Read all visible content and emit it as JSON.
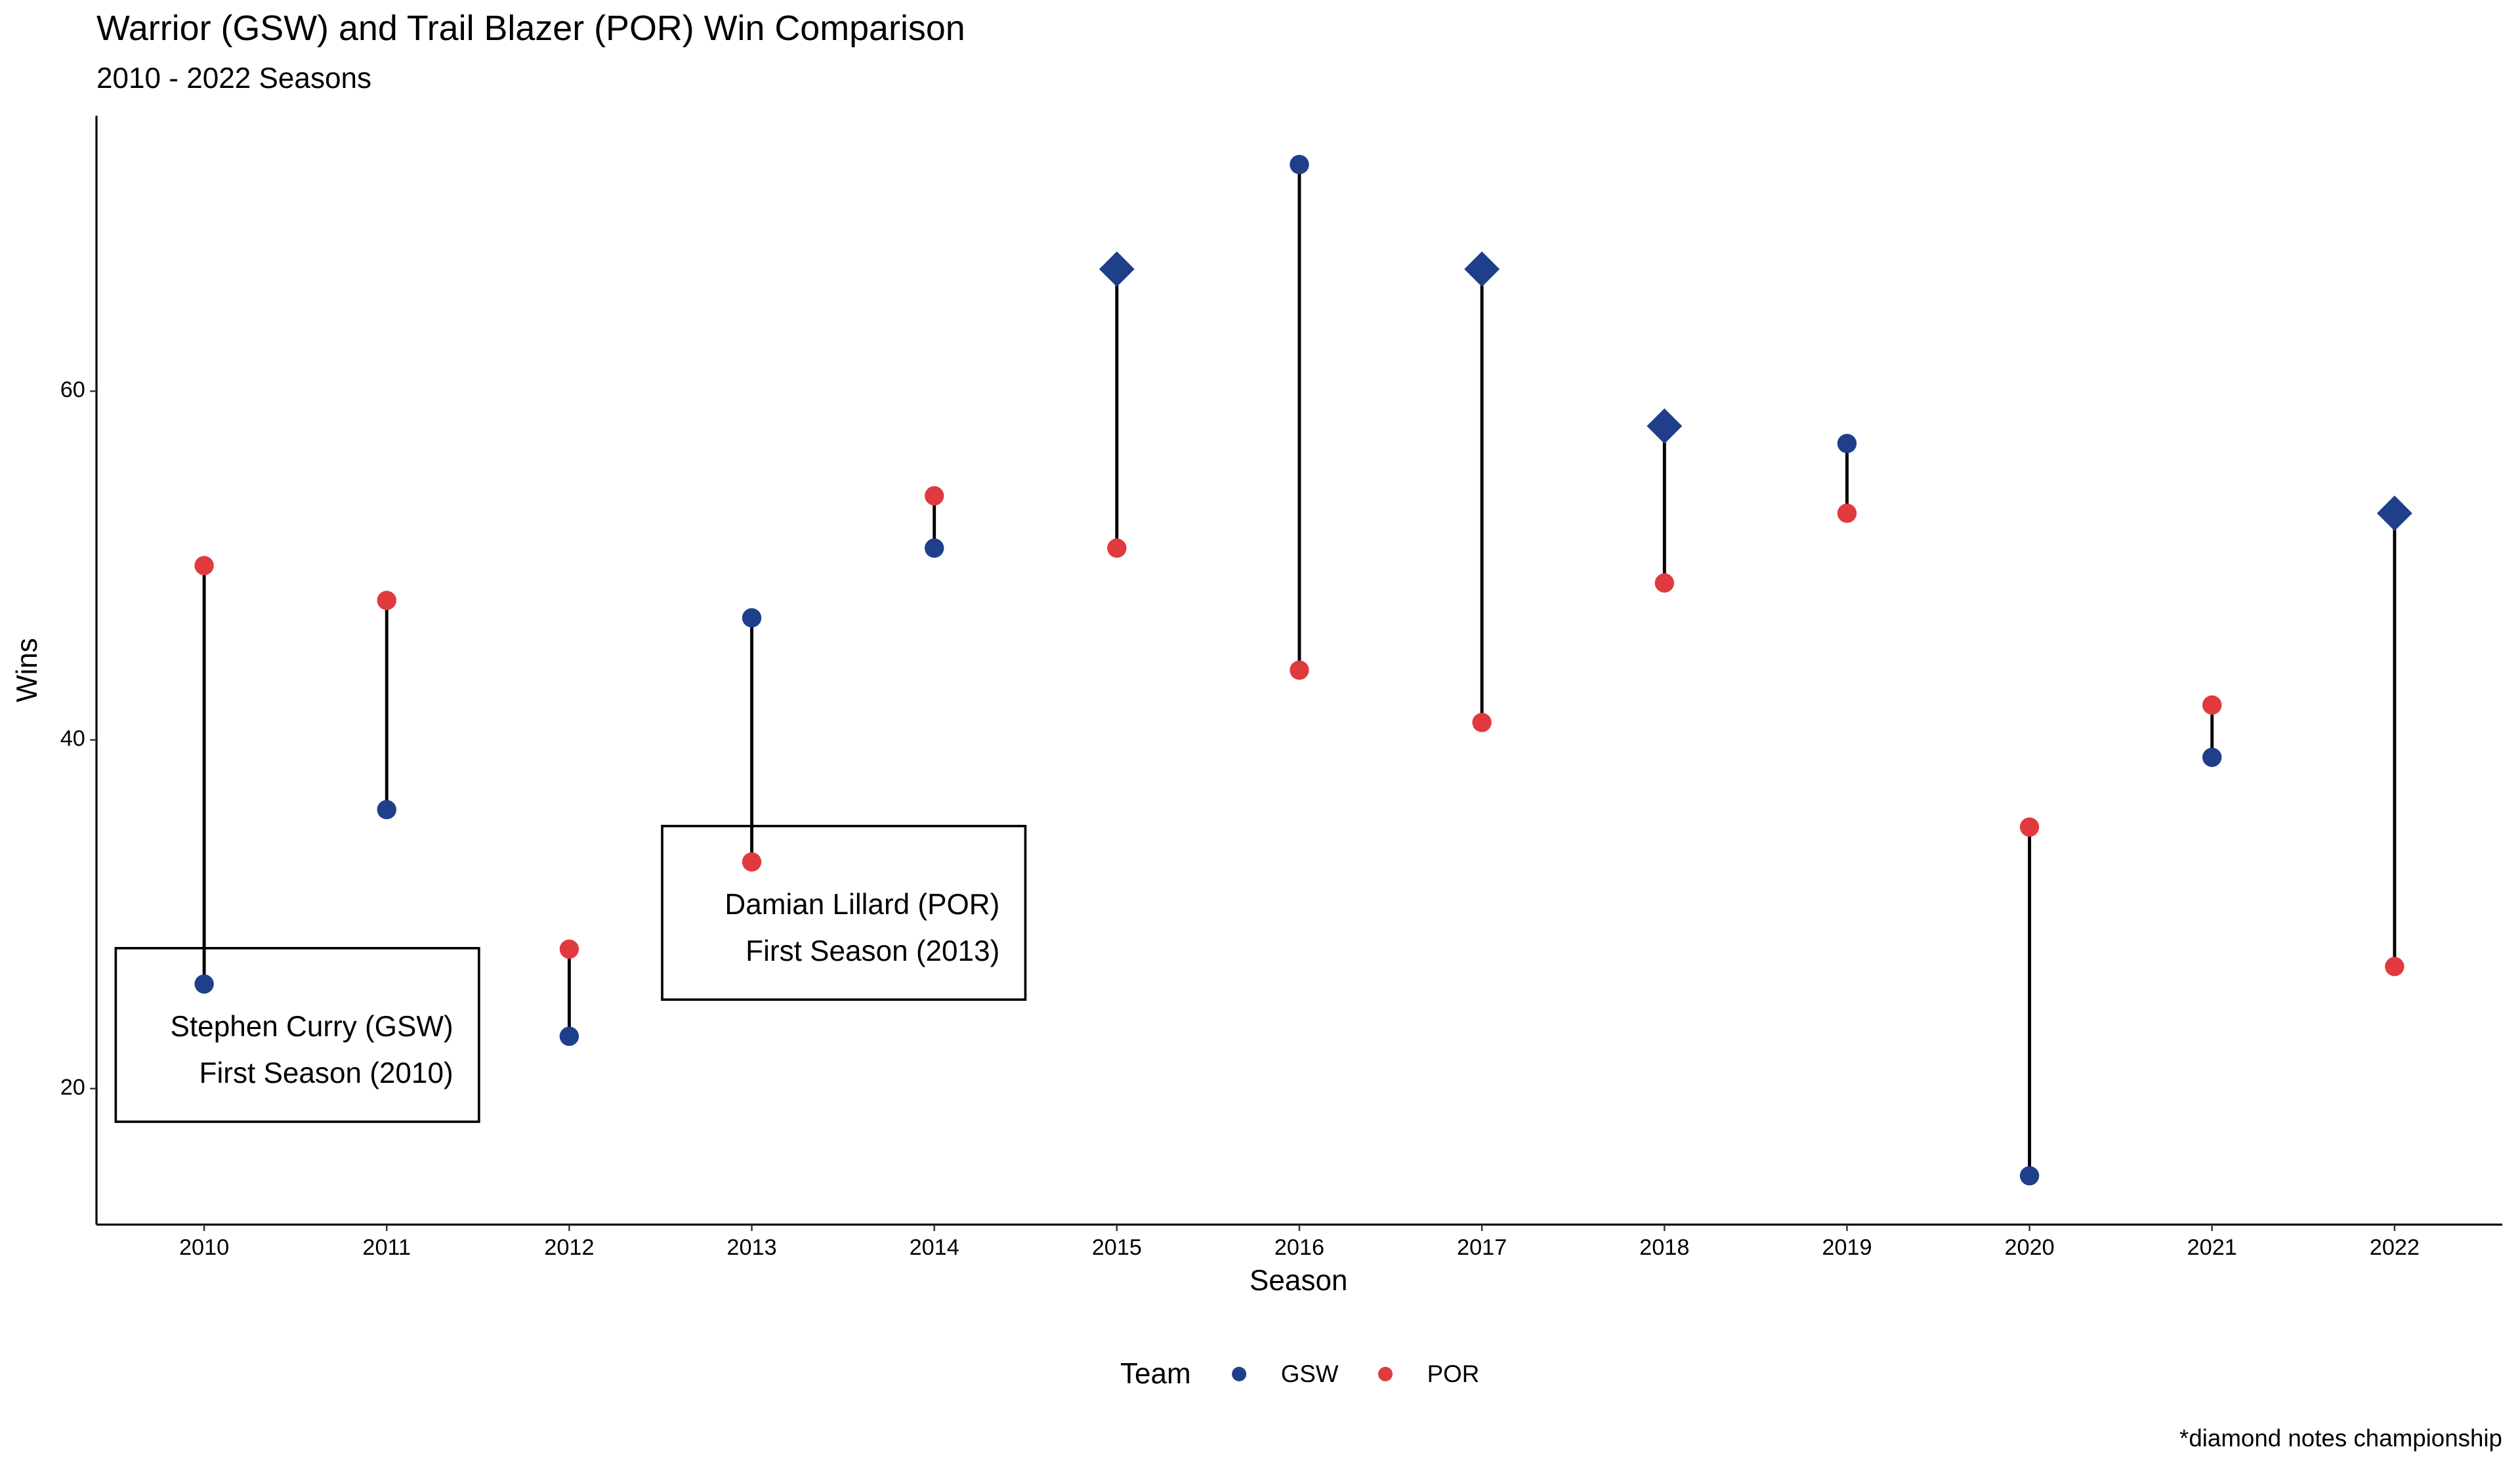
{
  "chart_data": {
    "type": "dumbbell",
    "title": "Warrior (GSW) and Trail Blazer (POR) Win Comparison",
    "subtitle": "2010 - 2022 Seasons",
    "x_label": "Season",
    "y_label": "Wins",
    "legend_title": "Team",
    "footnote": "*diamond notes championship",
    "x": [
      2010,
      2011,
      2012,
      2013,
      2014,
      2015,
      2016,
      2017,
      2018,
      2019,
      2020,
      2021,
      2022
    ],
    "series": [
      {
        "name": "GSW",
        "color": "#1f3f8a",
        "values": [
          26,
          36,
          23,
          47,
          51,
          67,
          73,
          67,
          58,
          57,
          15,
          39,
          53
        ],
        "championship": [
          2015,
          2017,
          2018,
          2022
        ]
      },
      {
        "name": "POR",
        "color": "#e03a3e",
        "values": [
          50,
          48,
          28,
          33,
          54,
          51,
          44,
          41,
          49,
          53,
          35,
          42,
          27
        ]
      }
    ],
    "xlim": [
      2009.41,
      2022.59
    ],
    "xticks": [
      2010,
      2011,
      2012,
      2013,
      2014,
      2015,
      2016,
      2017,
      2018,
      2019,
      2020,
      2021,
      2022
    ],
    "ylim": [
      12.2,
      75.8
    ],
    "yticks": [
      20,
      40,
      60
    ],
    "grid": false,
    "legend_position": "bottom",
    "annotations": [
      {
        "lines": [
          "Stephen Curry (GSW)",
          "First Season (2010)"
        ]
      },
      {
        "lines": [
          "Damian Lillard (POR)",
          "First Season (2013)"
        ]
      }
    ]
  }
}
